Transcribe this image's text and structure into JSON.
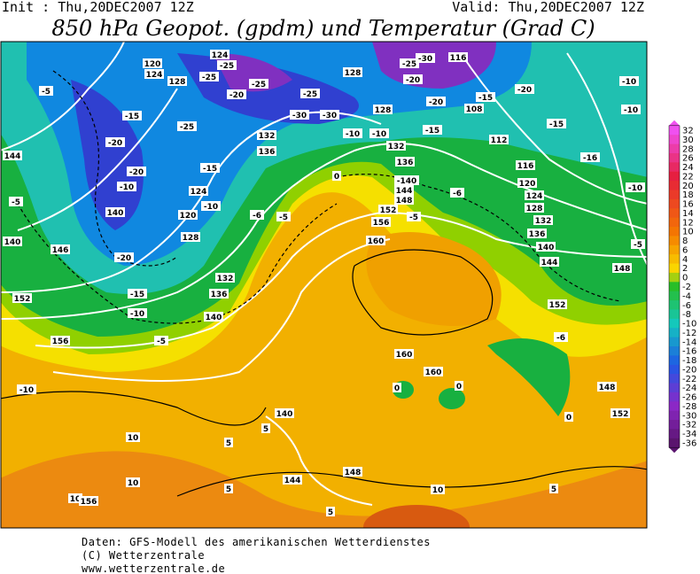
{
  "header": {
    "init": "Init : Thu,20DEC2007 12Z",
    "valid": "Valid: Thu,20DEC2007 12Z",
    "title": "850 hPa Geopot. (gpdm) und Temperatur (Grad C)"
  },
  "colorbar": {
    "labels": [
      32,
      30,
      28,
      26,
      24,
      22,
      20,
      18,
      16,
      14,
      12,
      10,
      8,
      6,
      4,
      2,
      0,
      -2,
      -4,
      -6,
      -8,
      -10,
      -12,
      -14,
      -16,
      -18,
      -20,
      -22,
      -24,
      -26,
      -28,
      -30,
      -32,
      -34,
      -36
    ]
  },
  "map": {
    "labels": [
      "120",
      "124",
      "128",
      "124",
      "-25",
      "-25",
      "-20",
      "-25",
      "-25",
      "128",
      "-25",
      "-30",
      "116",
      "-20",
      "-20",
      "-20",
      "108",
      "-15",
      "-15",
      "-10",
      "-10",
      "-5",
      "-15",
      "-20",
      "-20",
      "-10",
      "144",
      "-5",
      "140",
      "140",
      "146",
      "-20",
      "-15",
      "-10",
      "152",
      "156",
      "-5",
      "-10",
      "-25",
      "-15",
      "124",
      "120",
      "-10",
      "128",
      "132",
      "136",
      "140",
      "-6",
      "-5",
      "132",
      "136",
      "-30",
      "-30",
      "-10",
      "-10",
      "128",
      "-15",
      "132",
      "136",
      "-140",
      "144",
      "148",
      "152",
      "-5",
      "156",
      "160",
      "-6",
      "112",
      "116",
      "120",
      "124",
      "128",
      "132",
      "136",
      "140",
      "144",
      "148",
      "152",
      "-6",
      "148",
      "152",
      "0",
      "-16",
      "-10",
      "-5",
      "160",
      "160",
      "0",
      "0",
      "140",
      "144",
      "148",
      "5",
      "5",
      "5",
      "10",
      "10",
      "10",
      "156",
      "5",
      "10",
      "5",
      "0"
    ]
  },
  "footer": {
    "lines": [
      "Daten: GFS-Modell des amerikanischen Wetterdienstes",
      "(C) Wetterzentrale",
      "www.wetterzentrale.de"
    ]
  }
}
